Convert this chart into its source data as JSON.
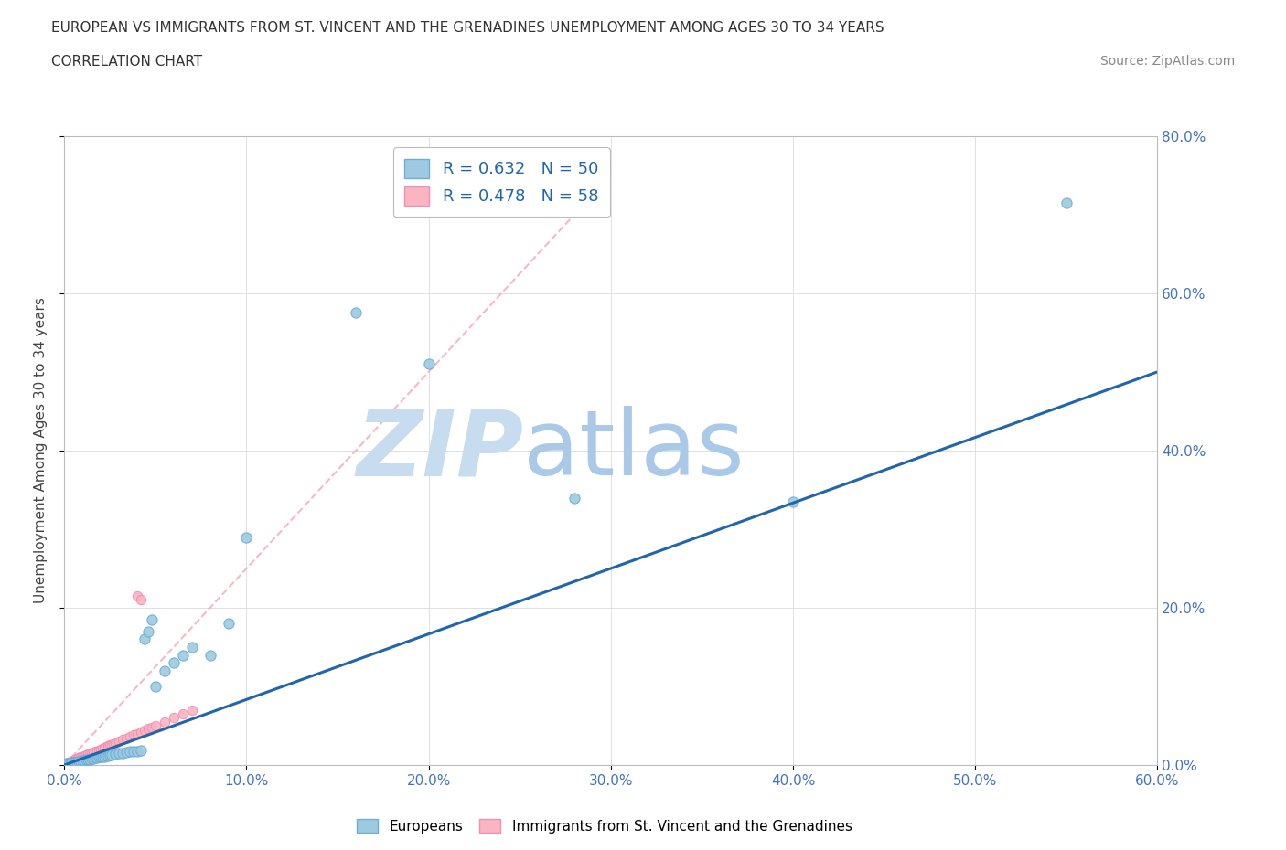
{
  "title_line1": "EUROPEAN VS IMMIGRANTS FROM ST. VINCENT AND THE GRENADINES UNEMPLOYMENT AMONG AGES 30 TO 34 YEARS",
  "title_line2": "CORRELATION CHART",
  "source_text": "Source: ZipAtlas.com",
  "ylabel": "Unemployment Among Ages 30 to 34 years",
  "xlim": [
    0.0,
    0.6
  ],
  "ylim": [
    0.0,
    0.8
  ],
  "xtick_labels": [
    "0.0%",
    "10.0%",
    "20.0%",
    "30.0%",
    "40.0%",
    "50.0%",
    "60.0%"
  ],
  "xtick_vals": [
    0.0,
    0.1,
    0.2,
    0.3,
    0.4,
    0.5,
    0.6
  ],
  "ytick_labels": [
    "0.0%",
    "20.0%",
    "40.0%",
    "60.0%",
    "80.0%"
  ],
  "ytick_vals": [
    0.0,
    0.2,
    0.4,
    0.6,
    0.8
  ],
  "background_color": "#ffffff",
  "grid_color": "#e0e0e0",
  "watermark_zip": "ZIP",
  "watermark_atlas": "atlas",
  "watermark_color_zip": "#c8dcf0",
  "watermark_color_atlas": "#aac8e8",
  "blue_scatter_color": "#9ecae1",
  "blue_scatter_edge": "#6baed6",
  "pink_scatter_color": "#fbb4c2",
  "pink_scatter_edge": "#f48fb1",
  "blue_line_color": "#2166ac",
  "pink_line_color": "#f4acbe",
  "R_blue": 0.632,
  "N_blue": 50,
  "R_pink": 0.478,
  "N_pink": 58,
  "legend_label_blue": "Europeans",
  "legend_label_pink": "Immigrants from St. Vincent and the Grenadines",
  "blue_points_x": [
    0.001,
    0.002,
    0.003,
    0.004,
    0.005,
    0.006,
    0.007,
    0.008,
    0.009,
    0.01,
    0.011,
    0.012,
    0.013,
    0.014,
    0.015,
    0.016,
    0.017,
    0.018,
    0.019,
    0.02,
    0.021,
    0.022,
    0.023,
    0.024,
    0.025,
    0.026,
    0.028,
    0.03,
    0.032,
    0.034,
    0.036,
    0.038,
    0.04,
    0.042,
    0.044,
    0.046,
    0.048,
    0.05,
    0.055,
    0.06,
    0.065,
    0.07,
    0.08,
    0.09,
    0.1,
    0.16,
    0.2,
    0.28,
    0.4,
    0.55
  ],
  "blue_points_y": [
    0.001,
    0.002,
    0.002,
    0.003,
    0.003,
    0.004,
    0.004,
    0.005,
    0.005,
    0.006,
    0.006,
    0.007,
    0.007,
    0.007,
    0.008,
    0.008,
    0.009,
    0.009,
    0.01,
    0.01,
    0.011,
    0.011,
    0.012,
    0.012,
    0.013,
    0.013,
    0.014,
    0.015,
    0.015,
    0.016,
    0.017,
    0.018,
    0.018,
    0.019,
    0.16,
    0.17,
    0.185,
    0.1,
    0.12,
    0.13,
    0.14,
    0.15,
    0.14,
    0.18,
    0.29,
    0.575,
    0.51,
    0.34,
    0.335,
    0.715
  ],
  "pink_points_x": [
    0.001,
    0.001,
    0.002,
    0.002,
    0.003,
    0.003,
    0.004,
    0.004,
    0.005,
    0.005,
    0.006,
    0.006,
    0.007,
    0.007,
    0.008,
    0.008,
    0.009,
    0.009,
    0.01,
    0.01,
    0.011,
    0.011,
    0.012,
    0.012,
    0.013,
    0.013,
    0.014,
    0.015,
    0.016,
    0.017,
    0.018,
    0.019,
    0.02,
    0.021,
    0.022,
    0.023,
    0.024,
    0.025,
    0.026,
    0.027,
    0.028,
    0.03,
    0.032,
    0.034,
    0.036,
    0.038,
    0.04,
    0.042,
    0.044,
    0.046,
    0.048,
    0.05,
    0.055,
    0.06,
    0.065,
    0.07,
    0.04,
    0.042
  ],
  "pink_points_y": [
    0.001,
    0.002,
    0.002,
    0.003,
    0.003,
    0.004,
    0.004,
    0.005,
    0.005,
    0.006,
    0.006,
    0.007,
    0.007,
    0.008,
    0.008,
    0.009,
    0.009,
    0.01,
    0.01,
    0.011,
    0.011,
    0.012,
    0.012,
    0.013,
    0.013,
    0.014,
    0.015,
    0.015,
    0.016,
    0.017,
    0.018,
    0.019,
    0.02,
    0.021,
    0.022,
    0.023,
    0.024,
    0.025,
    0.026,
    0.027,
    0.028,
    0.03,
    0.032,
    0.034,
    0.036,
    0.038,
    0.04,
    0.042,
    0.044,
    0.046,
    0.048,
    0.05,
    0.055,
    0.06,
    0.065,
    0.07,
    0.215,
    0.21
  ],
  "blue_line_x": [
    0.0,
    0.6
  ],
  "blue_line_y": [
    0.0,
    0.5
  ],
  "pink_line_x": [
    0.0,
    0.3
  ],
  "pink_line_y": [
    0.0,
    0.75
  ]
}
